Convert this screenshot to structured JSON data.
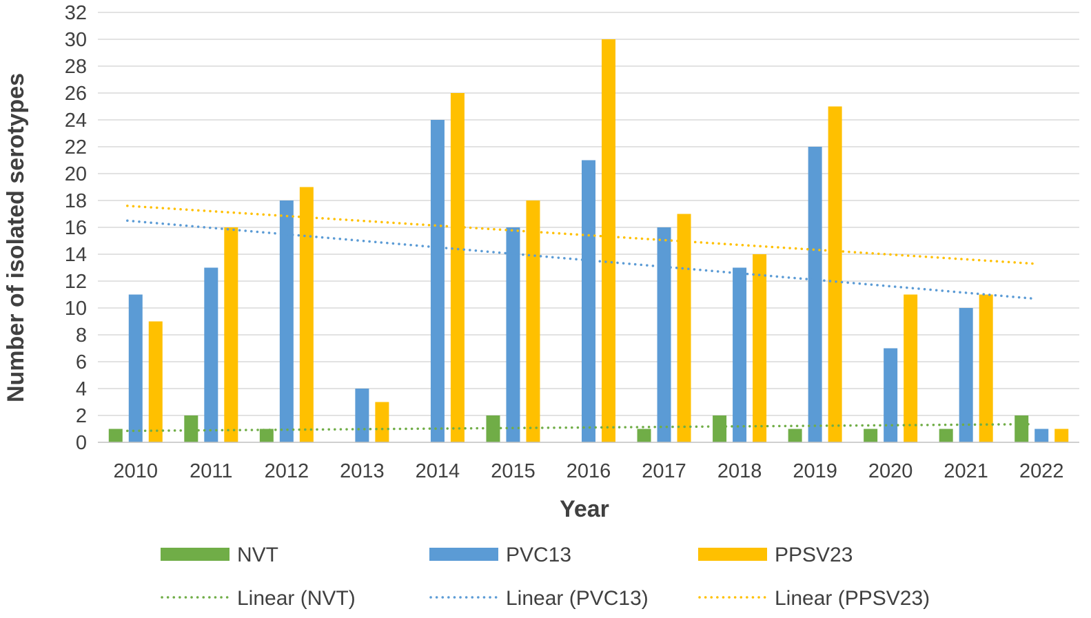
{
  "chart_data": {
    "type": "bar",
    "title": "",
    "xlabel": "Year",
    "ylabel": "Number of isolated  serotypes",
    "categories": [
      "2010",
      "2011",
      "2012",
      "2013",
      "2014",
      "2015",
      "2016",
      "2017",
      "2018",
      "2019",
      "2020",
      "2021",
      "2022"
    ],
    "ylim": [
      0,
      32
    ],
    "yticks": [
      "0",
      "2",
      "4",
      "6",
      "8",
      "10",
      "12",
      "14",
      "16",
      "18",
      "20",
      "22",
      "24",
      "26",
      "28",
      "30",
      "32"
    ],
    "grid": true,
    "legend_position": "bottom",
    "series": [
      {
        "name": "NVT",
        "color": "#70AD47",
        "values": [
          1,
          2,
          1,
          0,
          0,
          2,
          0,
          1,
          2,
          1,
          1,
          1,
          2
        ]
      },
      {
        "name": "PVC13",
        "color": "#5B9BD5",
        "values": [
          11,
          13,
          18,
          4,
          24,
          16,
          21,
          16,
          13,
          22,
          7,
          10,
          1
        ]
      },
      {
        "name": "PPSV23",
        "color": "#FFC000",
        "values": [
          9,
          16,
          19,
          3,
          26,
          18,
          30,
          17,
          14,
          25,
          11,
          11,
          1
        ]
      }
    ],
    "trendlines": [
      {
        "name": "Linear (NVT)",
        "series": "NVT",
        "type": "linear",
        "color": "#70AD47",
        "start": 0.85,
        "end": 1.35
      },
      {
        "name": "Linear (PVC13)",
        "series": "PVC13",
        "type": "linear",
        "color": "#5B9BD5",
        "start": 16.5,
        "end": 10.7
      },
      {
        "name": "Linear (PPSV23)",
        "series": "PPSV23",
        "type": "linear",
        "color": "#FFC000",
        "start": 17.6,
        "end": 13.3
      }
    ]
  }
}
